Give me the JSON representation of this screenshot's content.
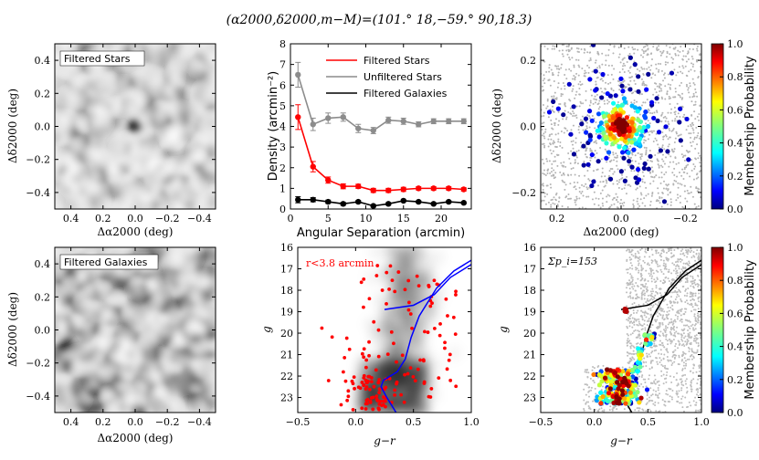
{
  "figure": {
    "title": "(α2000,δ2000,m−M)=(101.° 18,−59.° 90,18.3)"
  },
  "chart_data": [
    {
      "type": "heatmap",
      "panel": "filtered-stars-map",
      "label": "Filtered Stars",
      "xlabel": "Δα2000 (deg)",
      "ylabel": "Δδ2000 (deg)",
      "xlim": [
        0.5,
        -0.5
      ],
      "ylim": [
        -0.5,
        0.5
      ],
      "xticks": [
        "0.4",
        "0.2",
        "0.0",
        "−0.2",
        "−0.4"
      ],
      "yticks": [
        "−0.4",
        "−0.2",
        "0.0",
        "0.2",
        "0.4"
      ],
      "peaks": [
        {
          "x": 0.0,
          "y": 0.0,
          "level": 0.9
        }
      ]
    },
    {
      "type": "line",
      "panel": "radial-density-profile",
      "xlabel": "Angular Separation (arcmin)",
      "ylabel": "Density (arcmin⁻²)",
      "xlim": [
        0,
        24
      ],
      "ylim": [
        0,
        8
      ],
      "xticks": [
        "0",
        "5",
        "10",
        "15",
        "20"
      ],
      "yticks": [
        "0",
        "1",
        "2",
        "3",
        "4",
        "5",
        "6",
        "7",
        "8"
      ],
      "x": [
        1,
        3,
        5,
        7,
        9,
        11,
        13,
        15,
        17,
        19,
        21,
        23
      ],
      "series": [
        {
          "name": "Filtered Stars",
          "color": "#ff0000",
          "values": [
            4.45,
            2.05,
            1.4,
            1.1,
            1.1,
            0.9,
            0.9,
            0.95,
            1.0,
            1.0,
            1.0,
            0.95
          ],
          "errors": [
            0.6,
            0.25,
            0.15,
            0.12,
            0.1,
            0.1,
            0.1,
            0.1,
            0.08,
            0.08,
            0.08,
            0.08
          ]
        },
        {
          "name": "Unfiltered Stars",
          "color": "#8c8c8c",
          "values": [
            6.5,
            4.1,
            4.4,
            4.45,
            3.9,
            3.8,
            4.3,
            4.25,
            4.1,
            4.25,
            4.25,
            4.25
          ],
          "errors": [
            0.6,
            0.3,
            0.25,
            0.2,
            0.2,
            0.15,
            0.15,
            0.15,
            0.12,
            0.12,
            0.12,
            0.12
          ]
        },
        {
          "name": "Filtered Galaxies",
          "color": "#000000",
          "values": [
            0.45,
            0.45,
            0.35,
            0.25,
            0.35,
            0.15,
            0.25,
            0.4,
            0.35,
            0.25,
            0.35,
            0.3
          ],
          "errors": [
            0.15,
            0.1,
            0.08,
            0.07,
            0.06,
            0.06,
            0.06,
            0.05,
            0.05,
            0.05,
            0.05,
            0.05
          ]
        }
      ]
    },
    {
      "type": "scatter",
      "panel": "membership-spatial",
      "xlabel": "Δα2000 (deg)",
      "ylabel": "Δδ2000 (deg)",
      "xlim": [
        0.25,
        -0.25
      ],
      "ylim": [
        -0.25,
        0.25
      ],
      "xticks": [
        "0.2",
        "0.0",
        "−0.2"
      ],
      "yticks": [
        "−0.2",
        "0.0",
        "0.2"
      ],
      "colorbar": {
        "label": "Membership Probability",
        "range": [
          0.0,
          1.0
        ],
        "ticks": [
          "0.0",
          "0.2",
          "0.4",
          "0.6",
          "0.8",
          "1.0"
        ]
      },
      "members_center": [
        0.0,
        0.0
      ],
      "core_radius_deg": 0.03
    },
    {
      "type": "heatmap",
      "panel": "filtered-galaxies-map",
      "label": "Filtered Galaxies",
      "xlabel": "Δα2000 (deg)",
      "ylabel": "Δδ2000 (deg)",
      "xlim": [
        0.5,
        -0.5
      ],
      "ylim": [
        -0.5,
        0.5
      ],
      "xticks": [
        "0.4",
        "0.2",
        "0.0",
        "−0.2",
        "−0.4"
      ],
      "yticks": [
        "−0.4",
        "−0.2",
        "0.0",
        "0.2",
        "0.4"
      ]
    },
    {
      "type": "scatter",
      "panel": "cmd-inner",
      "annotation": "r<3.8 arcmin",
      "xlabel": "g−r",
      "ylabel": "g",
      "xlim": [
        -0.5,
        1.0
      ],
      "ylim": [
        23.7,
        16
      ],
      "xticks": [
        "−0.5",
        "0.0",
        "0.5",
        "1.0"
      ],
      "yticks": [
        "16",
        "17",
        "18",
        "19",
        "20",
        "21",
        "22",
        "23"
      ],
      "isochrone": [
        [
          0.35,
          23.7
        ],
        [
          0.27,
          23.0
        ],
        [
          0.22,
          22.5
        ],
        [
          0.24,
          22.2
        ],
        [
          0.36,
          21.8
        ],
        [
          0.43,
          21.2
        ],
        [
          0.48,
          20.2
        ],
        [
          0.55,
          19.2
        ],
        [
          0.7,
          17.9
        ],
        [
          0.85,
          17.1
        ],
        [
          1.0,
          16.6
        ]
      ],
      "hb_branch": [
        [
          0.25,
          18.9
        ],
        [
          0.5,
          18.7
        ],
        [
          0.68,
          18.2
        ],
        [
          0.82,
          17.4
        ],
        [
          1.0,
          16.8
        ]
      ]
    },
    {
      "type": "scatter",
      "panel": "cmd-members",
      "annotation": "Σp_i=153",
      "xlabel": "g−r",
      "ylabel": "g",
      "xlim": [
        -0.5,
        1.0
      ],
      "ylim": [
        23.7,
        16
      ],
      "xticks": [
        "−0.5",
        "0.0",
        "0.5",
        "1.0"
      ],
      "yticks": [
        "16",
        "17",
        "18",
        "19",
        "20",
        "21",
        "22",
        "23"
      ],
      "colorbar": {
        "label": "Membership Probability",
        "range": [
          0.0,
          1.0
        ],
        "ticks": [
          "0.0",
          "0.2",
          "0.4",
          "0.6",
          "0.8",
          "1.0"
        ]
      }
    }
  ]
}
